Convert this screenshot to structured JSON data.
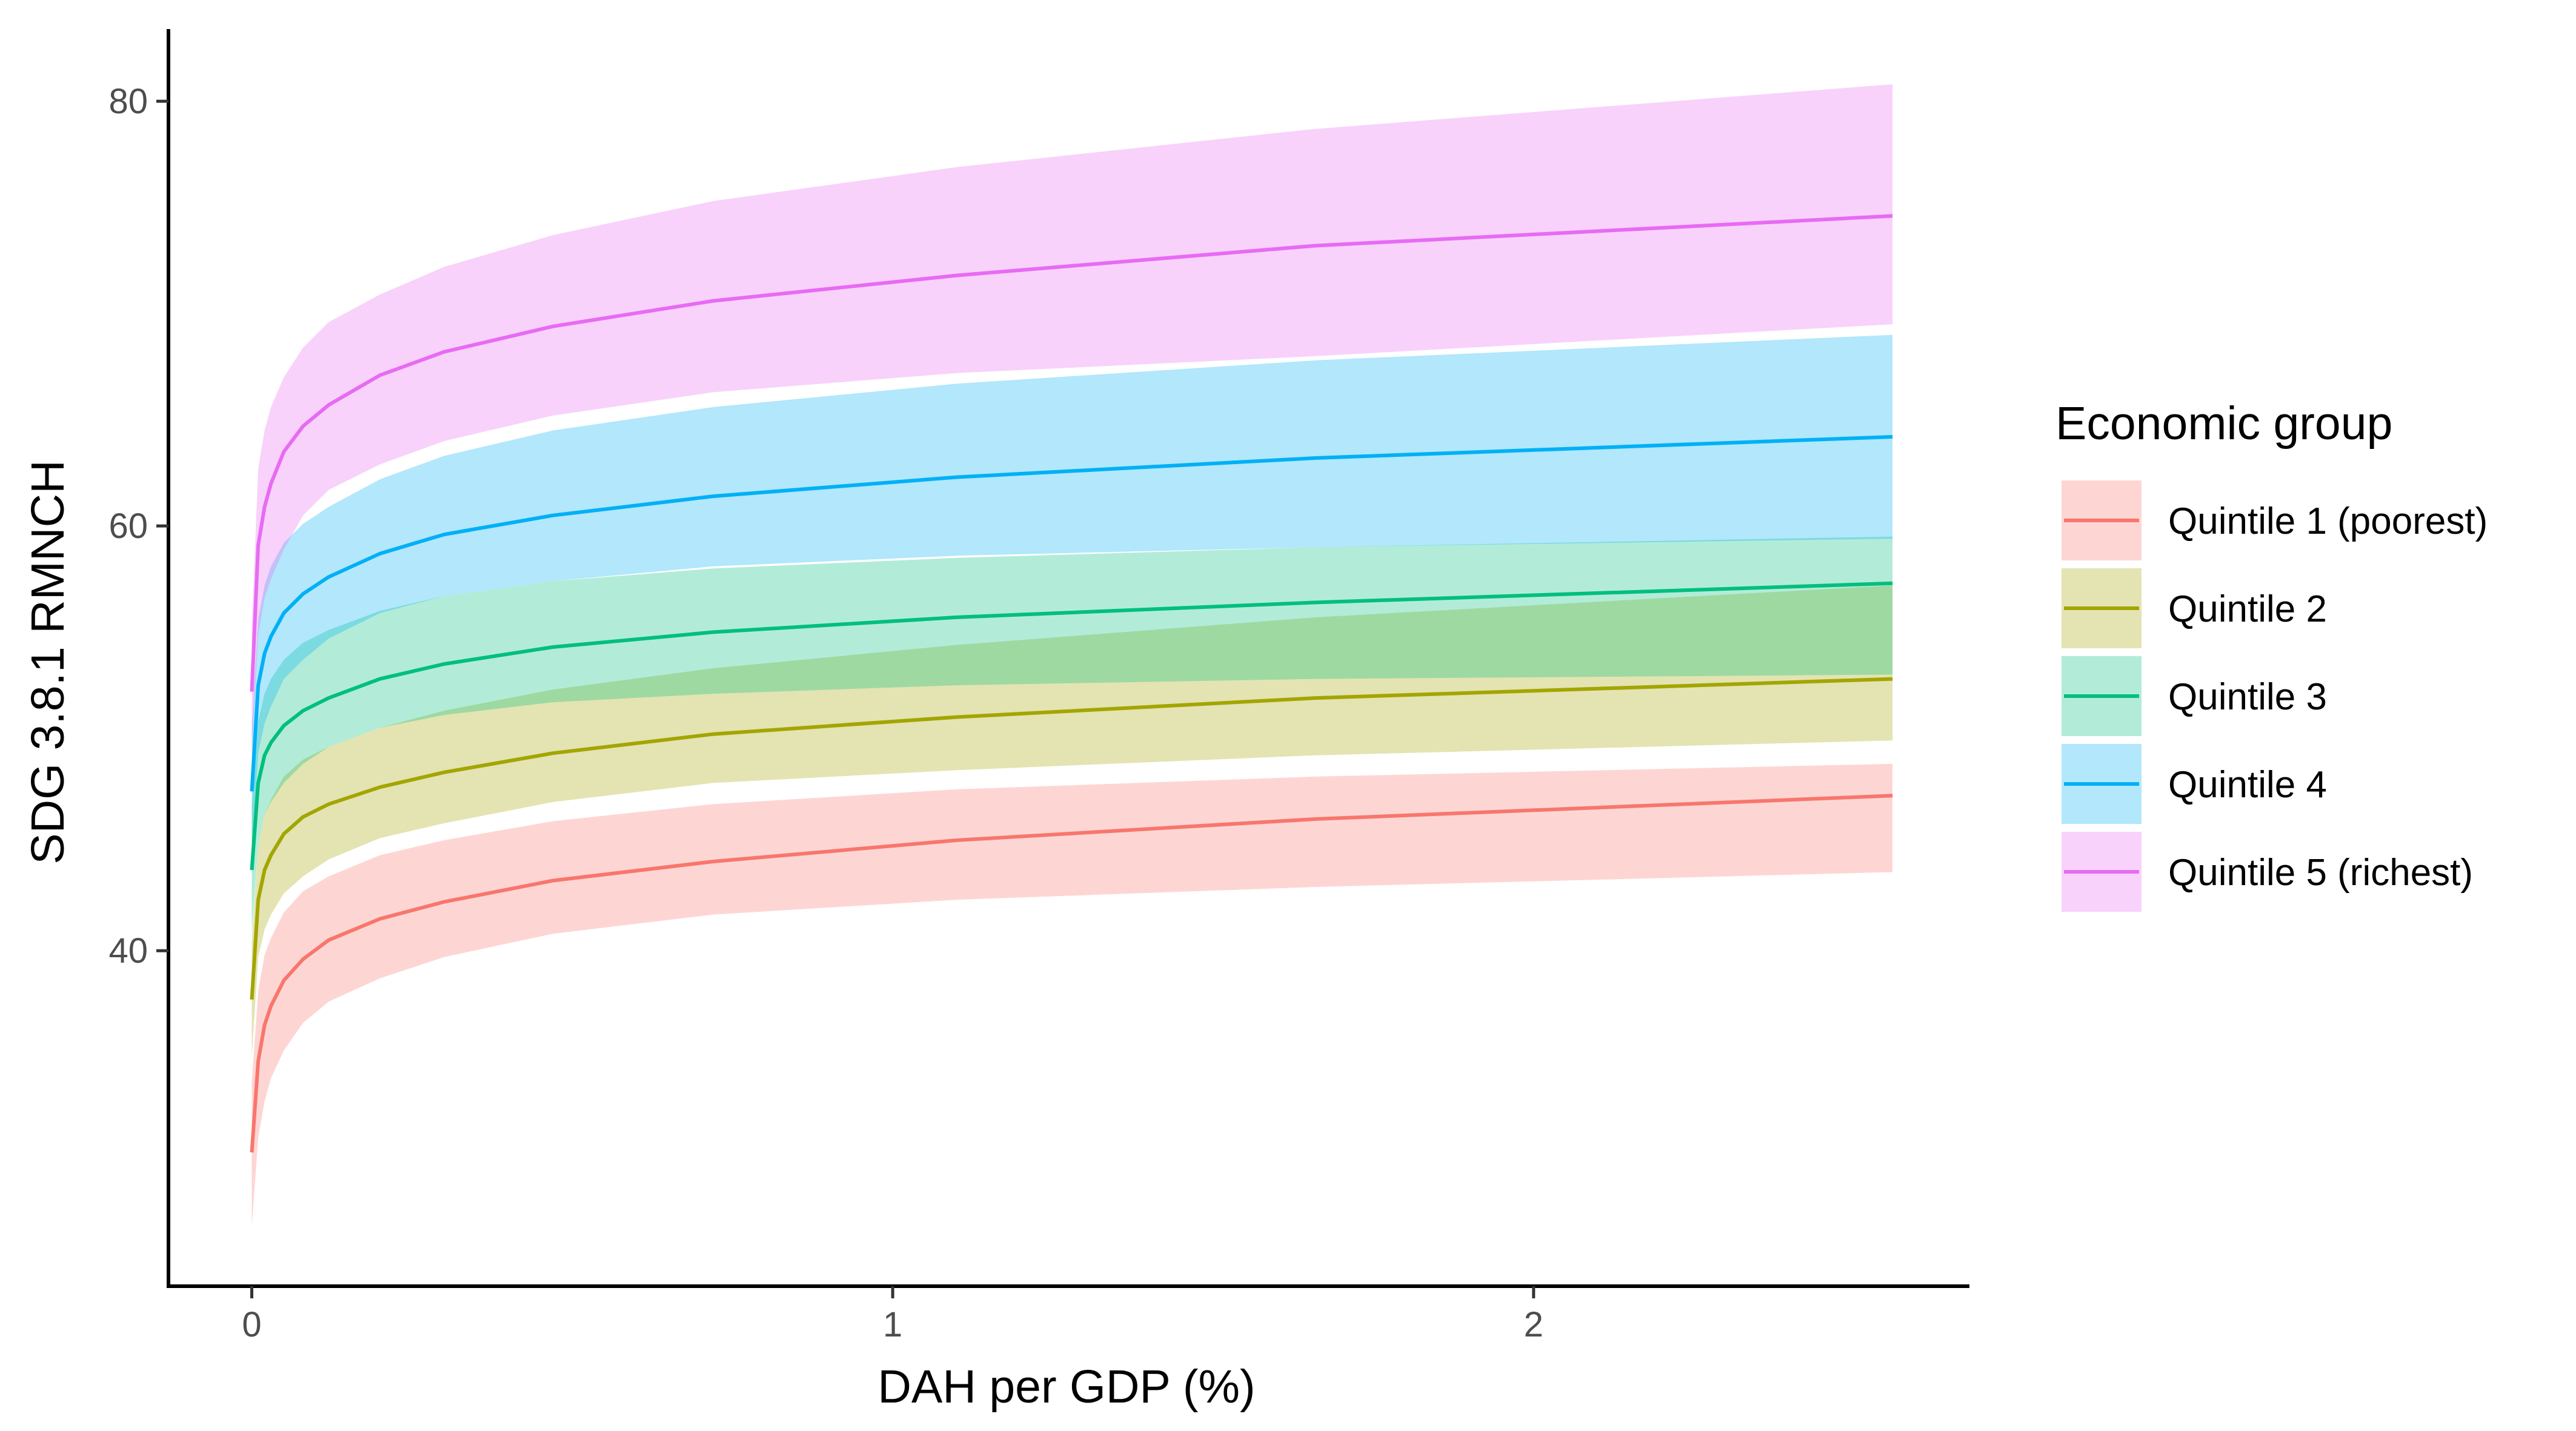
{
  "chart_data": {
    "type": "line",
    "xlabel": "DAH per GDP (%)",
    "ylabel": "SDG 3.8.1 RMNCH",
    "xlim": [
      -0.13,
      2.68
    ],
    "ylim": [
      24.2,
      83.4
    ],
    "x_ticks": [
      0,
      1,
      2
    ],
    "x_tick_labels": [
      "0",
      "1",
      "2"
    ],
    "y_ticks": [
      40,
      60,
      80
    ],
    "y_tick_labels": [
      "40",
      "60",
      "80"
    ],
    "grid": false,
    "legend": {
      "title": "Economic group",
      "position": "right"
    },
    "x": [
      0,
      0.01,
      0.02,
      0.03,
      0.05,
      0.08,
      0.12,
      0.2,
      0.3,
      0.47,
      0.72,
      1.1,
      1.66,
      2.56
    ],
    "series": [
      {
        "name": "Quintile 1 (poorest)",
        "color": "#F8766D",
        "y": [
          30.5,
          34.8,
          36.5,
          37.4,
          38.6,
          39.6,
          40.5,
          41.5,
          42.3,
          43.3,
          44.2,
          45.2,
          46.2,
          47.3
        ],
        "lower": [
          27.0,
          31.2,
          32.9,
          34.0,
          35.3,
          36.6,
          37.6,
          38.7,
          39.7,
          40.8,
          41.7,
          42.4,
          43.0,
          43.7
        ],
        "upper": [
          33.8,
          38.1,
          39.8,
          40.6,
          41.8,
          42.8,
          43.5,
          44.5,
          45.2,
          46.1,
          46.9,
          47.6,
          48.2,
          48.8
        ]
      },
      {
        "name": "Quintile 2",
        "color": "#A3A500",
        "y": [
          37.7,
          42.4,
          43.8,
          44.5,
          45.5,
          46.3,
          46.9,
          47.7,
          48.4,
          49.3,
          50.2,
          51.0,
          51.9,
          52.8
        ],
        "lower": [
          35.0,
          39.7,
          41.0,
          41.7,
          42.7,
          43.5,
          44.3,
          45.3,
          46.0,
          47.0,
          47.9,
          48.5,
          49.2,
          49.9
        ],
        "upper": [
          40.4,
          45.0,
          46.4,
          47.1,
          48.2,
          49.0,
          49.6,
          50.5,
          51.3,
          52.3,
          53.3,
          54.4,
          55.7,
          57.2
        ]
      },
      {
        "name": "Quintile 3",
        "color": "#00BF7D",
        "y": [
          43.8,
          47.9,
          49.2,
          49.8,
          50.6,
          51.3,
          51.9,
          52.8,
          53.5,
          54.3,
          55.0,
          55.7,
          56.4,
          57.3
        ],
        "lower": [
          40.8,
          45.0,
          46.4,
          47.0,
          47.9,
          48.8,
          49.6,
          50.5,
          51.1,
          51.7,
          52.1,
          52.5,
          52.8,
          53.0
        ],
        "upper": [
          46.8,
          50.8,
          52.1,
          52.8,
          53.7,
          54.5,
          55.1,
          56.0,
          56.7,
          57.4,
          58.0,
          58.5,
          59.0,
          59.5
        ]
      },
      {
        "name": "Quintile 4",
        "color": "#00B0F6",
        "y": [
          47.5,
          52.5,
          54.0,
          54.8,
          55.9,
          56.8,
          57.6,
          58.7,
          59.6,
          60.5,
          61.4,
          62.3,
          63.2,
          64.2
        ],
        "lower": [
          44.5,
          49.3,
          50.7,
          51.5,
          52.8,
          53.7,
          54.7,
          55.9,
          56.7,
          57.4,
          58.1,
          58.6,
          59.0,
          59.4
        ],
        "upper": [
          50.5,
          55.6,
          57.2,
          58.1,
          59.2,
          60.1,
          60.9,
          62.2,
          63.3,
          64.5,
          65.6,
          66.7,
          67.8,
          69.0
        ]
      },
      {
        "name": "Quintile 5 (richest)",
        "color": "#E76BF3",
        "y": [
          52.2,
          59.1,
          60.9,
          62.0,
          63.5,
          64.7,
          65.7,
          67.1,
          68.2,
          69.4,
          70.6,
          71.8,
          73.2,
          74.6
        ],
        "lower": [
          49.3,
          54.9,
          56.6,
          57.5,
          58.9,
          60.5,
          61.7,
          62.9,
          64.0,
          65.2,
          66.3,
          67.2,
          68.0,
          69.5
        ],
        "upper": [
          55.3,
          62.7,
          64.5,
          65.6,
          67.0,
          68.4,
          69.6,
          70.9,
          72.2,
          73.7,
          75.3,
          76.9,
          78.7,
          80.8
        ]
      }
    ]
  }
}
